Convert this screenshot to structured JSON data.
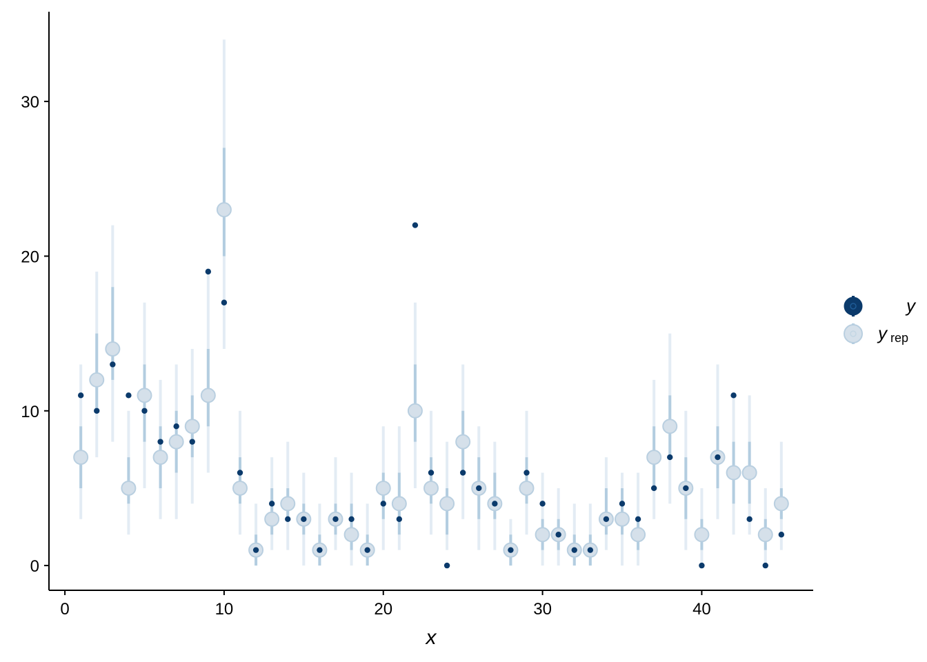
{
  "chart_data": {
    "type": "scatter",
    "xlabel": "x",
    "ylabel": "",
    "xlim": [
      -1,
      47
    ],
    "ylim": [
      -1.6,
      35.8
    ],
    "x_ticks": [
      0,
      10,
      20,
      30,
      40
    ],
    "y_ticks": [
      0,
      10,
      20,
      30
    ],
    "grid": false,
    "legend_position": "right",
    "legend": [
      {
        "key": "y",
        "label": "y",
        "subscript": ""
      },
      {
        "key": "yrep",
        "label": "y",
        "subscript": "rep"
      }
    ],
    "colors": {
      "y": "#0b3a6b",
      "yrep_point": "#d5e0ea",
      "yrep_point_stroke": "#b9cfe0",
      "outer_interval": "#e3ecf4",
      "inner_interval": "#b3cde0"
    },
    "x": [
      1,
      2,
      3,
      4,
      5,
      6,
      7,
      8,
      9,
      10,
      11,
      12,
      13,
      14,
      15,
      16,
      17,
      18,
      19,
      20,
      21,
      22,
      23,
      24,
      25,
      26,
      27,
      28,
      29,
      30,
      31,
      32,
      33,
      34,
      35,
      36,
      37,
      38,
      39,
      40,
      41,
      42,
      43,
      44,
      45
    ],
    "y": [
      11,
      10,
      13,
      11,
      10,
      8,
      9,
      8,
      19,
      17,
      6,
      1,
      4,
      3,
      3,
      1,
      3,
      3,
      1,
      4,
      3,
      22,
      6,
      0,
      6,
      5,
      4,
      1,
      6,
      4,
      2,
      1,
      1,
      3,
      4,
      3,
      5,
      7,
      5,
      0,
      7,
      11,
      3,
      0,
      2
    ],
    "yrep_median": [
      7,
      12,
      14,
      5,
      11,
      7,
      8,
      9,
      11,
      23,
      5,
      1,
      3,
      4,
      3,
      1,
      3,
      2,
      1,
      5,
      4,
      10,
      5,
      4,
      8,
      5,
      4,
      1,
      5,
      2,
      2,
      1,
      1,
      3,
      3,
      2,
      7,
      9,
      5,
      2,
      7,
      6,
      6,
      2,
      4
    ],
    "yrep_inner_low": [
      5,
      10,
      12,
      4,
      8,
      5,
      6,
      7,
      9,
      20,
      4,
      0,
      2,
      3,
      2,
      0,
      2,
      1,
      0,
      3,
      2,
      8,
      4,
      2,
      6,
      3,
      3,
      0,
      4,
      1,
      1,
      0,
      0,
      2,
      2,
      1,
      5,
      7,
      3,
      1,
      5,
      4,
      4,
      1,
      3
    ],
    "yrep_inner_high": [
      9,
      15,
      18,
      7,
      13,
      9,
      10,
      11,
      14,
      27,
      7,
      2,
      5,
      5,
      4,
      2,
      4,
      4,
      2,
      6,
      6,
      13,
      7,
      5,
      10,
      7,
      6,
      2,
      7,
      3,
      3,
      2,
      2,
      5,
      5,
      3,
      9,
      11,
      7,
      3,
      9,
      8,
      8,
      3,
      5
    ],
    "yrep_outer_low": [
      3,
      7,
      8,
      2,
      5,
      3,
      3,
      4,
      6,
      14,
      2,
      0,
      1,
      1,
      0,
      0,
      1,
      0,
      0,
      1,
      1,
      5,
      2,
      1,
      3,
      1,
      1,
      0,
      2,
      0,
      0,
      0,
      0,
      1,
      0,
      0,
      3,
      4,
      1,
      0,
      3,
      2,
      2,
      0,
      1
    ],
    "yrep_outer_high": [
      13,
      19,
      22,
      10,
      17,
      12,
      13,
      14,
      19,
      34,
      10,
      4,
      7,
      8,
      6,
      4,
      7,
      6,
      4,
      9,
      9,
      17,
      10,
      8,
      13,
      9,
      8,
      3,
      10,
      6,
      5,
      4,
      4,
      7,
      6,
      6,
      12,
      15,
      10,
      5,
      13,
      11,
      11,
      5,
      8
    ]
  }
}
